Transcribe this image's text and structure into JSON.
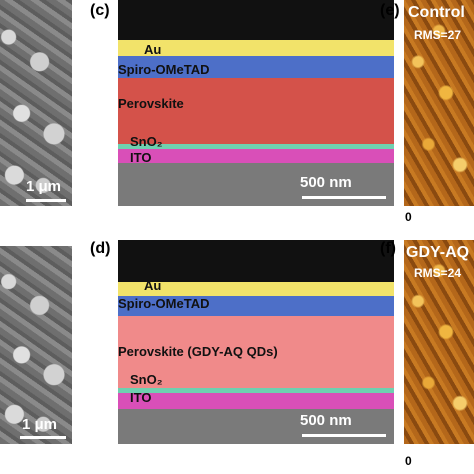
{
  "panels": {
    "a": {
      "scale_label": "1 μm"
    },
    "b": {
      "scale_label": "1 μm"
    },
    "c": {
      "label": "(c)",
      "layers": {
        "au": "Au",
        "spiro": "Spiro-OMeTAD",
        "perovskite": "Perovskite",
        "sno2": "SnO₂",
        "ito": "ITO"
      },
      "scale_label": "500 nm"
    },
    "d": {
      "label": "(d)",
      "layers": {
        "au": "Au",
        "spiro": "Spiro-OMeTAD",
        "perovskite": "Perovskite (GDY-AQ QDs)",
        "sno2": "SnO₂",
        "ito": "ITO"
      },
      "scale_label": "500 nm"
    },
    "e": {
      "label": "(e)",
      "title": "Control",
      "rms": "RMS=27",
      "zero": "0"
    },
    "f": {
      "label": "(f)",
      "title": "GDY-AQ",
      "rms": "RMS=24",
      "zero": "0"
    }
  },
  "colors": {
    "au": "#f2e36a",
    "spiro": "#4d6fc8",
    "perovskite_c": "#d4524a",
    "perovskite_d": "#f08a8a",
    "sno2": "#6fd0b0",
    "ito": "#d94fb8",
    "glass": "#7a7a7a",
    "background": "#111111"
  }
}
